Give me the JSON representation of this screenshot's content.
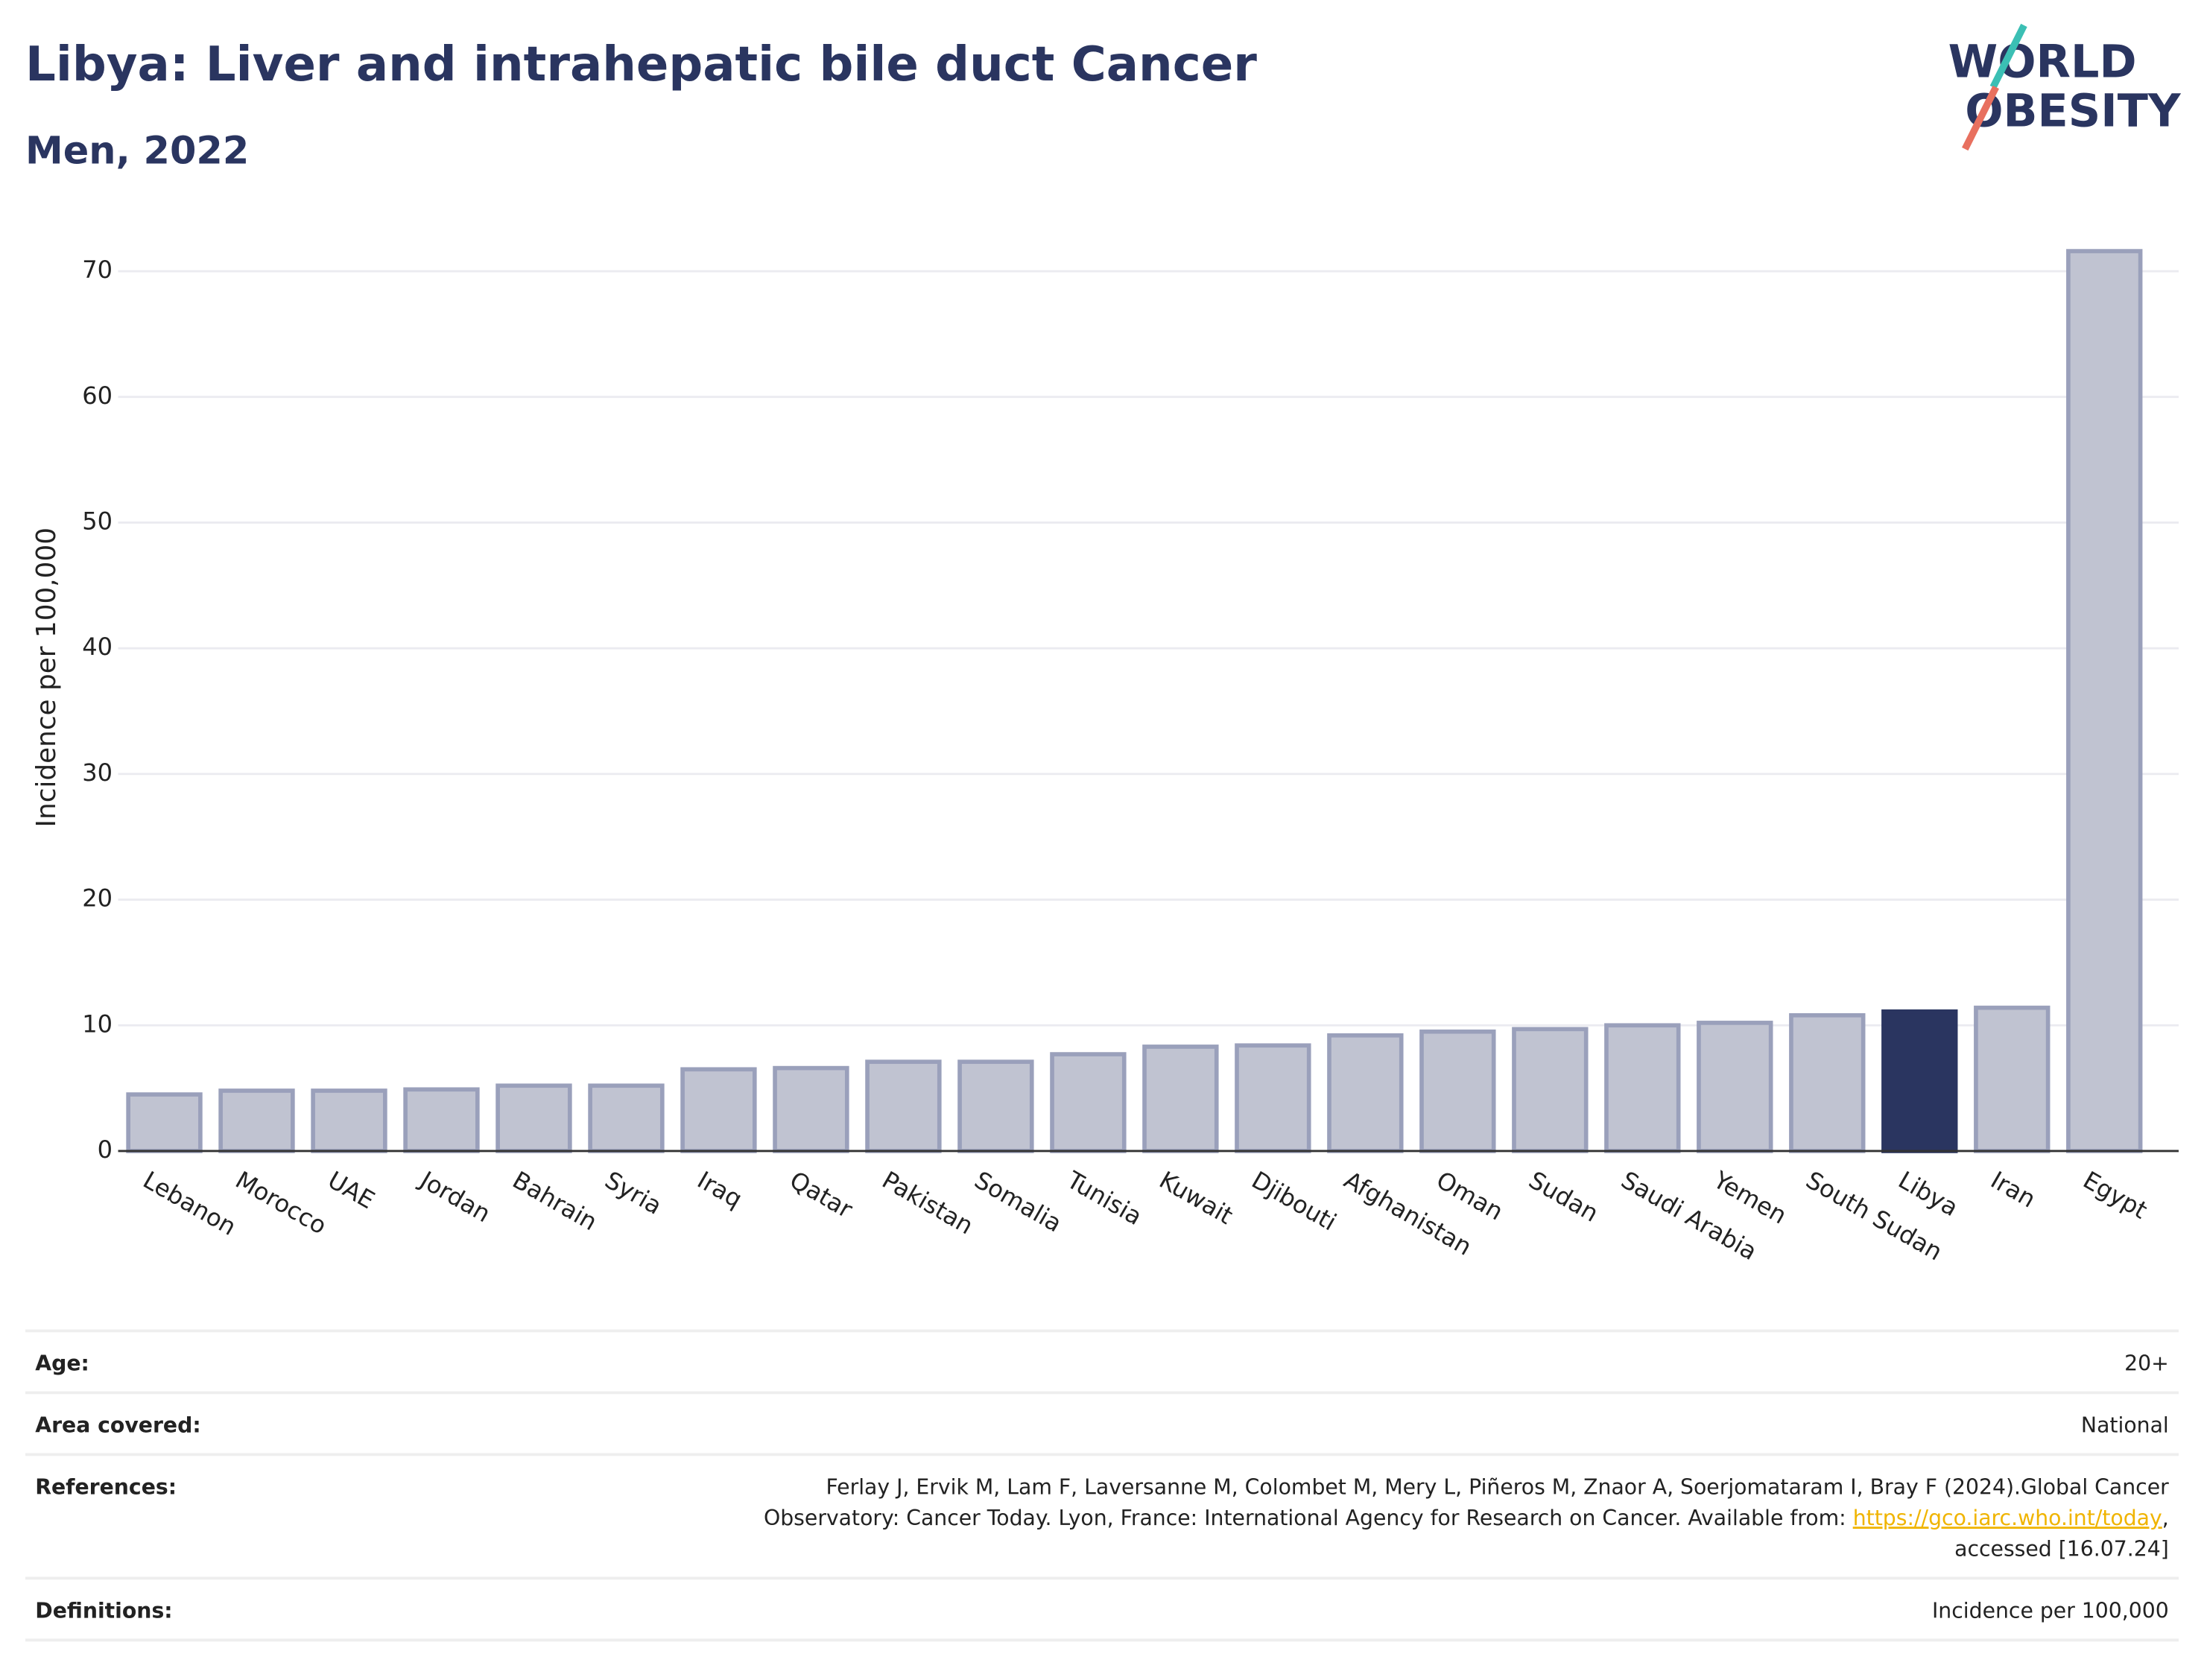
{
  "chart_data": {
    "type": "bar",
    "title": "Libya: Liver and intrahepatic bile duct Cancer",
    "subtitle": "Men, 2022",
    "y_label": "Incidence per 100,000",
    "categories": [
      "Lebanon",
      "Morocco",
      "UAE",
      "Jordan",
      "Bahrain",
      "Syria",
      "Iraq",
      "Qatar",
      "Pakistan",
      "Somalia",
      "Tunisia",
      "Kuwait",
      "Djibouti",
      "Afghanistan",
      "Oman",
      "Sudan",
      "Saudi Arabia",
      "Yemen",
      "South Sudan",
      "Libya",
      "Iran",
      "Egypt"
    ],
    "values": [
      4.5,
      4.8,
      4.8,
      4.9,
      5.2,
      5.2,
      6.5,
      6.6,
      7.1,
      7.1,
      7.7,
      8.3,
      8.4,
      9.2,
      9.5,
      9.7,
      10.0,
      10.2,
      10.8,
      11.1,
      11.4,
      71.6
    ],
    "color": "#c0c3d1",
    "highlight": "Libya",
    "highlight_color": "#2a3560",
    "ylim": [
      0,
      70
    ],
    "yticks": [
      0,
      10,
      20,
      30,
      40,
      50,
      60,
      70
    ],
    "grid": true
  },
  "logo": {
    "line1": "WORLD",
    "line2": "OBESITY"
  },
  "table": {
    "age": {
      "label": "Age:",
      "value": "20+"
    },
    "area": {
      "label": "Area covered:",
      "value": "National"
    },
    "references": {
      "label": "References:",
      "line1": "Ferlay J, Ervik M, Lam F, Laversanne M, Colombet M, Mery L, Piñeros M, Znaor A, Soerjomataram I, Bray F (2024).Global Cancer",
      "line2": "Observatory: Cancer Today. Lyon, France: International Agency for Research on Cancer. Available from: ",
      "link": "https://gco.iarc.who.int/today",
      "line2_end": ",",
      "line3": "accessed [16.07.24]"
    },
    "definitions": {
      "label": "Definitions:",
      "value": "Incidence per 100,000"
    }
  }
}
